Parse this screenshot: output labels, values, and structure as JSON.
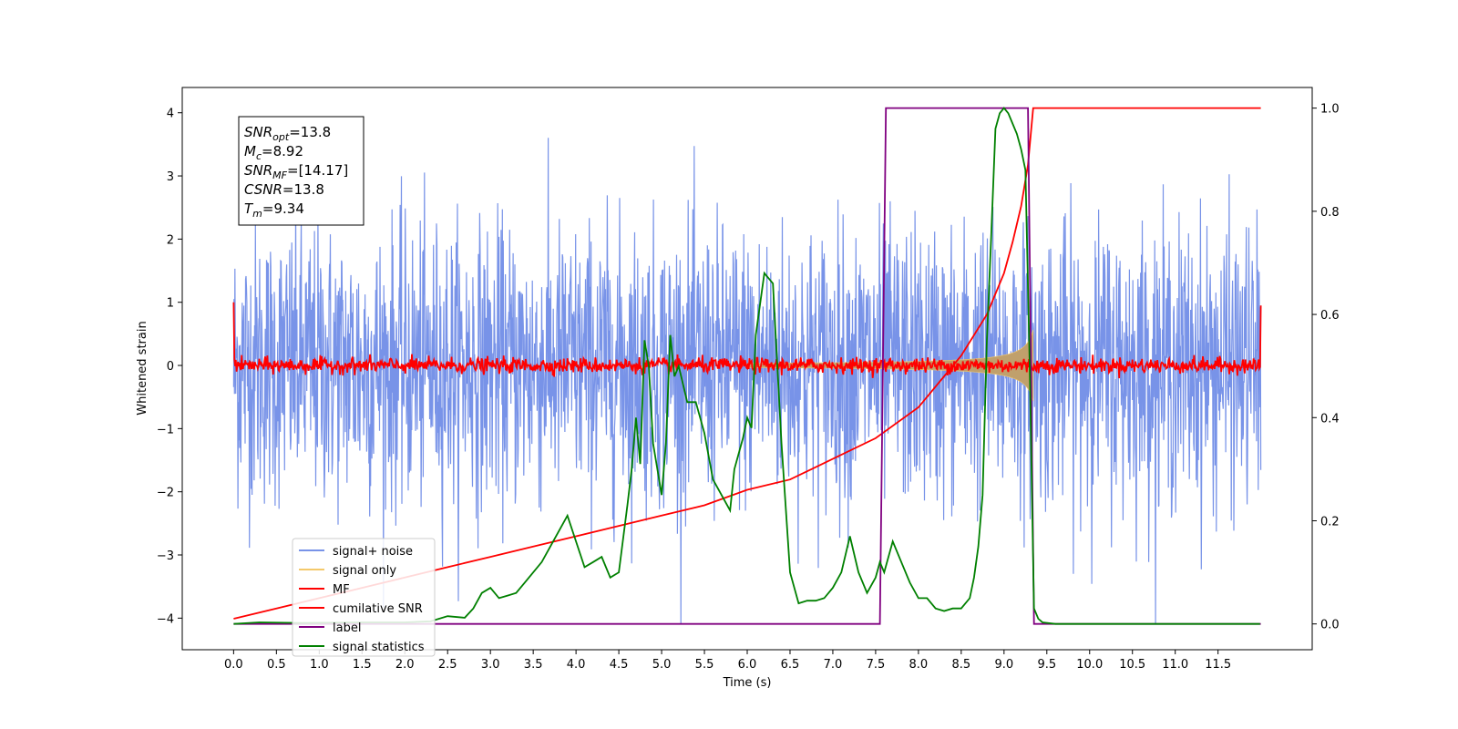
{
  "chart_data": {
    "type": "line",
    "xlabel": "Time (s)",
    "ylabel": "Whitened strain",
    "xlim": [
      -0.6,
      12.6
    ],
    "ylim_left": [
      -4.5,
      4.4
    ],
    "ylim_right": [
      -0.05,
      1.04
    ],
    "x_ticks": [
      "0.0",
      "0.5",
      "1.0",
      "1.5",
      "2.0",
      "2.5",
      "3.0",
      "3.5",
      "4.0",
      "4.5",
      "5.0",
      "5.5",
      "6.0",
      "6.5",
      "7.0",
      "7.5",
      "8.0",
      "8.5",
      "9.0",
      "9.5",
      "10.0",
      "10.5",
      "11.0",
      "11.5"
    ],
    "y_ticks_left": [
      "4",
      "3",
      "2",
      "1",
      "0",
      "−1",
      "−2",
      "−3",
      "−4"
    ],
    "y_ticks_right": [
      "1.0",
      "0.8",
      "0.6",
      "0.4",
      "0.2",
      "0.0"
    ],
    "grid": false,
    "legend_position": "lower-left",
    "annotation": {
      "lines": [
        {
          "sym": "SNR",
          "sub": "opt",
          "value": "=13.8"
        },
        {
          "sym": "M",
          "sub": "c",
          "value": "=8.92"
        },
        {
          "sym": "SNR",
          "sub": "MF",
          "value": "=[14.17]"
        },
        {
          "sym": "CSNR",
          "sub": "",
          "value": "=13.8"
        },
        {
          "sym": "T",
          "sub": "m",
          "value": "=9.34"
        }
      ]
    },
    "series": [
      {
        "name": "signal+ noise",
        "color": "#7893e8",
        "axis": "left",
        "kind": "noise",
        "x_range": [
          0,
          12
        ],
        "amplitude": 1.1
      },
      {
        "name": "signal only",
        "color": "#f4c96b",
        "axis": "left",
        "kind": "chirp",
        "merger_time": 9.34
      },
      {
        "name": "MF",
        "color": "#ff0000",
        "axis": "left",
        "kind": "mf",
        "x_range": [
          0,
          12
        ]
      },
      {
        "name": "cumilative SNR",
        "color": "#ff0000",
        "axis": "right",
        "x": [
          0.0,
          0.5,
          1.0,
          1.5,
          2.0,
          2.5,
          3.0,
          3.5,
          4.0,
          4.5,
          5.0,
          5.5,
          6.0,
          6.5,
          7.0,
          7.5,
          8.0,
          8.5,
          8.8,
          9.0,
          9.1,
          9.2,
          9.28,
          9.34,
          12.0
        ],
        "y": [
          0.01,
          0.03,
          0.05,
          0.07,
          0.09,
          0.11,
          0.13,
          0.15,
          0.17,
          0.19,
          0.21,
          0.23,
          0.26,
          0.28,
          0.32,
          0.36,
          0.42,
          0.52,
          0.6,
          0.68,
          0.74,
          0.81,
          0.89,
          1.0,
          1.0
        ]
      },
      {
        "name": "label",
        "color": "#800080",
        "axis": "right",
        "x": [
          0.0,
          7.55,
          7.62,
          9.28,
          9.35,
          12.0
        ],
        "y": [
          0.0,
          0.0,
          1.0,
          1.0,
          0.0,
          0.0
        ]
      },
      {
        "name": "signal statistics",
        "color": "#008000",
        "axis": "right",
        "x": [
          0.0,
          0.3,
          0.8,
          1.5,
          2.0,
          2.3,
          2.5,
          2.7,
          2.8,
          2.9,
          3.0,
          3.1,
          3.2,
          3.3,
          3.4,
          3.5,
          3.6,
          3.7,
          3.8,
          3.9,
          4.0,
          4.1,
          4.2,
          4.3,
          4.4,
          4.5,
          4.6,
          4.65,
          4.7,
          4.75,
          4.8,
          4.85,
          4.9,
          4.95,
          5.0,
          5.05,
          5.1,
          5.15,
          5.2,
          5.3,
          5.4,
          5.5,
          5.6,
          5.7,
          5.8,
          5.85,
          5.9,
          5.95,
          6.0,
          6.05,
          6.1,
          6.2,
          6.3,
          6.4,
          6.5,
          6.6,
          6.7,
          6.8,
          6.9,
          7.0,
          7.1,
          7.2,
          7.3,
          7.4,
          7.5,
          7.55,
          7.6,
          7.7,
          7.8,
          7.9,
          8.0,
          8.1,
          8.2,
          8.3,
          8.4,
          8.5,
          8.6,
          8.65,
          8.7,
          8.75,
          8.8,
          8.85,
          8.9,
          8.95,
          9.0,
          9.05,
          9.1,
          9.15,
          9.2,
          9.25,
          9.3,
          9.35,
          9.4,
          9.45,
          9.6,
          10.0,
          11.0,
          11.99
        ],
        "y": [
          0.0,
          0.003,
          0.002,
          0.003,
          0.003,
          0.005,
          0.015,
          0.012,
          0.03,
          0.06,
          0.07,
          0.05,
          0.055,
          0.06,
          0.08,
          0.1,
          0.12,
          0.15,
          0.18,
          0.21,
          0.16,
          0.11,
          0.12,
          0.13,
          0.09,
          0.1,
          0.23,
          0.3,
          0.4,
          0.31,
          0.55,
          0.5,
          0.35,
          0.3,
          0.25,
          0.35,
          0.56,
          0.48,
          0.5,
          0.43,
          0.43,
          0.37,
          0.28,
          0.25,
          0.22,
          0.3,
          0.33,
          0.36,
          0.4,
          0.38,
          0.56,
          0.68,
          0.66,
          0.35,
          0.1,
          0.04,
          0.045,
          0.045,
          0.05,
          0.07,
          0.1,
          0.17,
          0.1,
          0.06,
          0.09,
          0.12,
          0.1,
          0.16,
          0.12,
          0.08,
          0.05,
          0.05,
          0.03,
          0.025,
          0.03,
          0.03,
          0.05,
          0.09,
          0.15,
          0.25,
          0.55,
          0.75,
          0.96,
          0.99,
          1.0,
          0.99,
          0.97,
          0.95,
          0.92,
          0.88,
          0.5,
          0.03,
          0.01,
          0.003,
          0.0,
          0.0,
          0.0,
          0.0
        ]
      }
    ]
  }
}
